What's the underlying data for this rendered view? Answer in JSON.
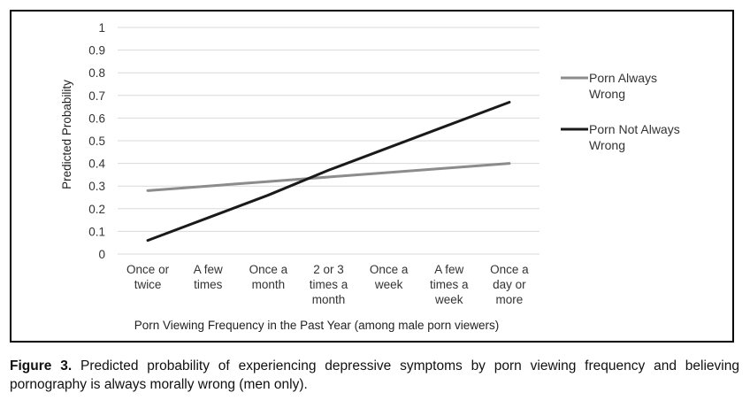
{
  "chart_data": {
    "type": "line",
    "ylabel": "Predicted Probability",
    "xlabel": "Porn Viewing Frequency in the Past Year (among male porn viewers)",
    "ylim": [
      0,
      1
    ],
    "yticks": [
      "0",
      "0.1",
      "0.2",
      "0.3",
      "0.4",
      "0.5",
      "0.6",
      "0.7",
      "0.8",
      "0.9",
      "1"
    ],
    "categories": [
      [
        "Once or",
        "twice"
      ],
      [
        "A few",
        "times"
      ],
      [
        "Once a",
        "month"
      ],
      [
        "2 or 3",
        "times a",
        "month"
      ],
      [
        "Once a",
        "week"
      ],
      [
        "A few",
        "times a",
        "week"
      ],
      [
        "Once a",
        "day or",
        "more"
      ]
    ],
    "grid": true,
    "legend_position": "right",
    "series": [
      {
        "name": [
          "Porn Always",
          "Wrong"
        ],
        "color": "#8c8c8c",
        "values": [
          0.28,
          0.3,
          0.32,
          0.34,
          0.36,
          0.38,
          0.4
        ]
      },
      {
        "name": [
          "Porn Not Always",
          "Wrong"
        ],
        "color": "#1a1a1a",
        "values": [
          0.06,
          0.16,
          0.26,
          0.37,
          0.47,
          0.57,
          0.67
        ]
      }
    ]
  },
  "caption": {
    "label": "Figure 3.",
    "text": "Predicted probability of experiencing depressive symptoms by porn viewing frequency and believing pornography is always morally wrong (men only)."
  }
}
